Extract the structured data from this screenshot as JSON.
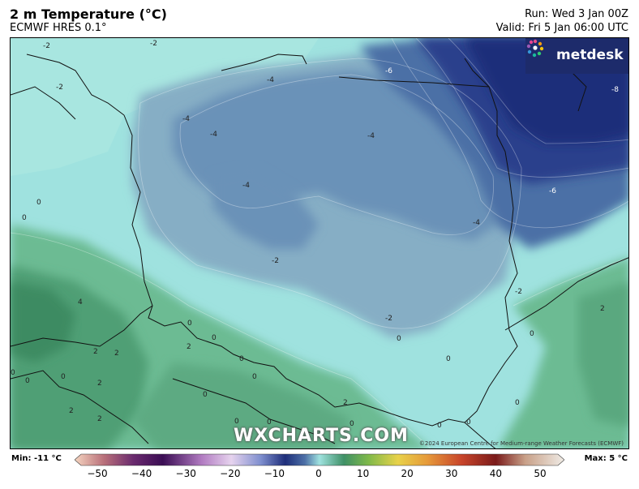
{
  "header": {
    "title": "2 m Temperature (°C)",
    "model": "ECMWF HRES 0.1°",
    "run": "Run: Wed 3 Jan 00Z",
    "valid": "Valid: Fri 5 Jan 06:00 UTC"
  },
  "logo": {
    "text": "metdesk"
  },
  "watermark": "WXCHARTS.COM",
  "copyright": "©2024 European Centre for Medium-range Weather Forecasts (ECMWF)",
  "colorbar": {
    "min_label": "Min: -11 °C",
    "max_label": "Max: 5 °C",
    "ticks": [
      "−50",
      "−40",
      "−30",
      "−20",
      "−10",
      "0",
      "10",
      "20",
      "30",
      "40",
      "50"
    ]
  },
  "contour_labels": [
    "-2",
    "-2",
    "-2",
    "-4",
    "-4",
    "-4",
    "-6",
    "-4",
    "-4",
    "-8",
    "-6",
    "-4",
    "-2",
    "-2",
    "-2",
    "0",
    "0",
    "4",
    "0",
    "2",
    "2",
    "2",
    "0",
    "0",
    "0",
    "2",
    "0",
    "0",
    "2",
    "2",
    "0",
    "0",
    "0",
    "0",
    "0",
    "0",
    "0",
    "0",
    "0",
    "2",
    "2",
    "0",
    "0"
  ],
  "colors": {
    "coldest": "#1e2e7a",
    "cold": "#4c6fa6",
    "cool": "#86aec5",
    "near_zero": "#9fe2df",
    "mild": "#5cae87",
    "warm": "#3f9066"
  }
}
